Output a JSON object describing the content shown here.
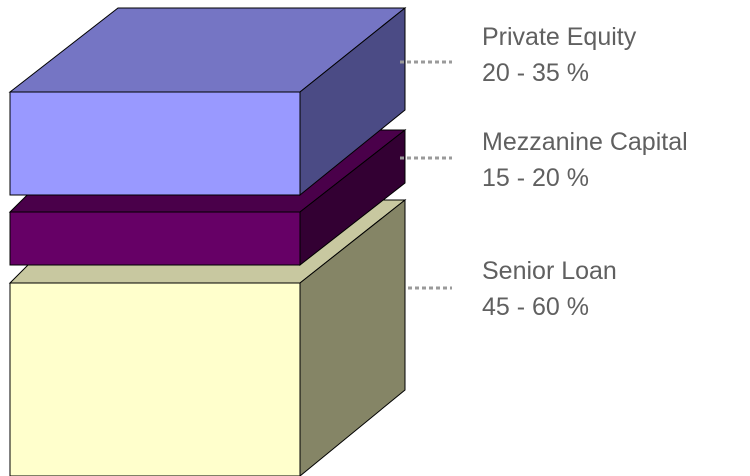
{
  "layers": [
    {
      "id": "private-equity",
      "title": "Private Equity",
      "range": "20 - 35 %",
      "colors": {
        "front": "#9999ff",
        "top": "#7575c4",
        "side": "#4b4b85"
      }
    },
    {
      "id": "mezzanine-capital",
      "title": "Mezzanine Capital",
      "range": "15 - 20 %",
      "colors": {
        "front": "#660066",
        "top": "#4a004a",
        "side": "#330033"
      }
    },
    {
      "id": "senior-loan",
      "title": "Senior Loan",
      "range": "45 - 60 %",
      "colors": {
        "front": "#ffffcc",
        "top": "#c8c8a0",
        "side": "#858566"
      }
    }
  ],
  "connector_color": "#9a9a9a",
  "text_color": "#606060"
}
